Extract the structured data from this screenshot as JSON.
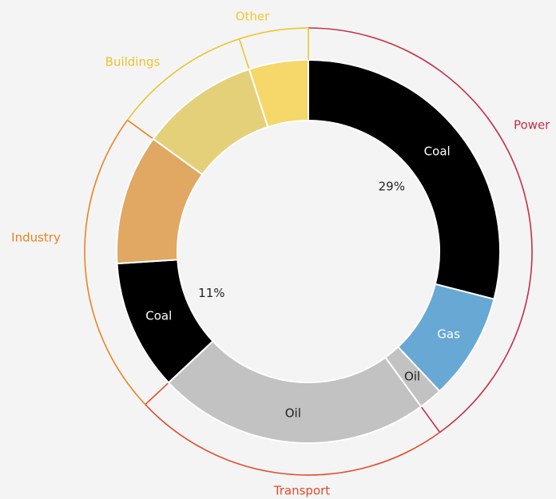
{
  "chart_data": {
    "type": "donut",
    "sectors": [
      {
        "name": "Power",
        "color": "#c2304a",
        "segments": [
          {
            "label": "Coal",
            "value": 29,
            "value_label": "29%",
            "color": "#000000",
            "text_color": "#ffffff"
          },
          {
            "label": "Gas",
            "value": 9,
            "color": "#68a8d4",
            "text_color": "#ffffff"
          },
          {
            "label": "Oil",
            "value": 2,
            "color": "#c2c2c2",
            "text_color": "#222222"
          }
        ]
      },
      {
        "name": "Transport",
        "color": "#e34a2c",
        "segments": [
          {
            "label": "Oil",
            "value": 23,
            "color": "#c2c2c2",
            "text_color": "#222222"
          }
        ]
      },
      {
        "name": "Industry",
        "color": "#ea8422",
        "segments": [
          {
            "label": "Coal",
            "value": 11,
            "value_label": "11%",
            "color": "#000000",
            "text_color": "#ffffff"
          },
          {
            "value": 11,
            "color": "#e0a862"
          }
        ]
      },
      {
        "name": "Buildings",
        "color": "#e9c530",
        "segments": [
          {
            "value": 10,
            "color": "#e5d07a"
          }
        ]
      },
      {
        "name": "Other",
        "color": "#efc72e",
        "segments": [
          {
            "value": 5,
            "color": "#f5d76a"
          }
        ]
      }
    ]
  }
}
